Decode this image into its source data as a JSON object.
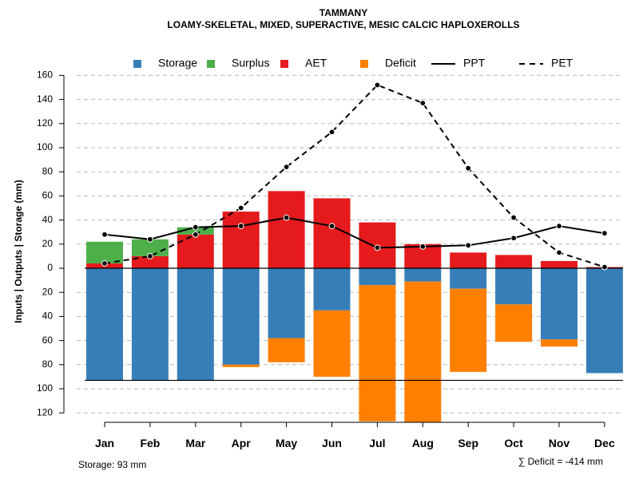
{
  "chart_data": {
    "type": "bar",
    "title": "TAMMANY",
    "subtitle": "LOAMY-SKELETAL, MIXED, SUPERACTIVE, MESIC CALCIC HAPLOXEROLLS",
    "ylabel": "Inputs | Outputs | Storage    (mm)",
    "ylim": [
      -125,
      160
    ],
    "yticks": [
      160,
      140,
      120,
      100,
      80,
      60,
      40,
      20,
      0,
      -20,
      -40,
      -60,
      -80,
      -100,
      -120
    ],
    "ytick_labels": [
      "160",
      "140",
      "120",
      "100",
      "80",
      "60",
      "40",
      "20",
      "0",
      "20",
      "40",
      "60",
      "80",
      "100",
      "120"
    ],
    "categories": [
      "Jan",
      "Feb",
      "Mar",
      "Apr",
      "May",
      "Jun",
      "Jul",
      "Aug",
      "Sep",
      "Oct",
      "Nov",
      "Dec"
    ],
    "legend": [
      {
        "name": "Storage",
        "kind": "box",
        "color": "#377eb8"
      },
      {
        "name": "Surplus",
        "kind": "box",
        "color": "#4daf4a"
      },
      {
        "name": "AET",
        "kind": "box",
        "color": "#e41a1c"
      },
      {
        "name": "Deficit",
        "kind": "box",
        "color": "#ff7f00"
      },
      {
        "name": "PPT",
        "kind": "solid",
        "color": "#000000"
      },
      {
        "name": "PET",
        "kind": "dashed",
        "color": "#000000"
      }
    ],
    "series": [
      {
        "name": "AET",
        "color": "#e41a1c",
        "values": [
          4,
          10,
          28,
          47,
          64,
          58,
          38,
          20,
          13,
          11,
          6,
          1
        ]
      },
      {
        "name": "Surplus",
        "color": "#4daf4a",
        "values": [
          18,
          14,
          6,
          0,
          0,
          0,
          0,
          0,
          0,
          0,
          0,
          0
        ]
      },
      {
        "name": "Storage",
        "color": "#377eb8",
        "values": [
          93,
          93,
          93,
          80,
          58,
          35,
          14,
          11,
          17,
          30,
          59,
          87
        ]
      },
      {
        "name": "Deficit",
        "color": "#ff7f00",
        "values": [
          0,
          0,
          0,
          2,
          20,
          55,
          113,
          117,
          69,
          31,
          6,
          0
        ]
      },
      {
        "name": "PPT",
        "color": "#000000",
        "values": [
          28,
          24,
          34,
          35,
          42,
          35,
          17,
          18,
          19,
          25,
          35,
          29
        ]
      },
      {
        "name": "PET",
        "color": "#000000",
        "values": [
          4,
          10,
          28,
          50,
          84,
          113,
          152,
          137,
          83,
          42,
          13,
          1
        ]
      }
    ],
    "storage_capacity": 93,
    "legend_position": "top",
    "grid": true
  },
  "footer": {
    "storage_label": "Storage: 93 mm",
    "deficit_label": "∑ Deficit = -414 mm"
  }
}
